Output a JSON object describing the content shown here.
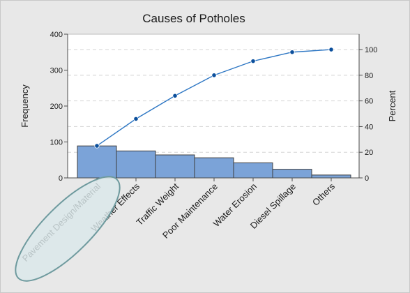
{
  "chart_data": {
    "type": "bar",
    "title": "Causes of Potholes",
    "xlabel": "",
    "ylabel": "Frequency",
    "y2label": "Percent",
    "categories": [
      "Pavement Design/Material",
      "Weather Effects",
      "Traffic Weight",
      "Poor Maintenance",
      "Water Erosion",
      "Diesel Spillage",
      "Others"
    ],
    "values": [
      89,
      75,
      64,
      56,
      42,
      24,
      8
    ],
    "cumulative_percent": [
      25,
      46,
      64,
      80,
      91,
      98,
      100
    ],
    "ylim": [
      0,
      400
    ],
    "y2lim": [
      0,
      112
    ],
    "yticks": [
      0,
      100,
      200,
      300,
      400
    ],
    "y2ticks": [
      0,
      20,
      40,
      60,
      80,
      100
    ],
    "grid": true,
    "highlight": "Pavement Design/Material",
    "colors": {
      "bar_fill": "#7ba3d8",
      "bar_stroke": "#3d3d3d",
      "line": "#2e77c4",
      "marker": "#0b4f9c",
      "grid": "#d4d4d4",
      "plot_bg": "#ffffff",
      "outer_bg": "#e8e8e8",
      "highlight_fill": "#dbe8ea",
      "highlight_stroke": "#6e9a9e"
    }
  }
}
